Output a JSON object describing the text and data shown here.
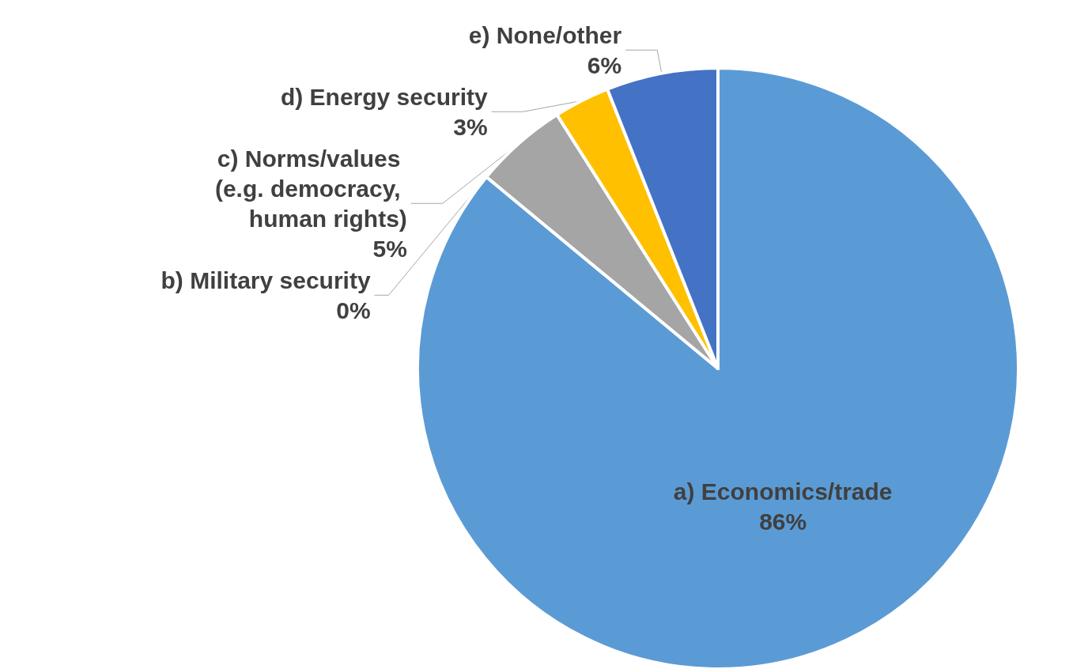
{
  "chart_data": {
    "type": "pie",
    "categories": [
      "a) Economics/trade",
      "b) Military security",
      "c) Norms/values (e.g. democracy, human rights)",
      "d) Energy security",
      "e) None/other"
    ],
    "values": [
      86,
      0,
      5,
      3,
      6
    ],
    "value_labels": [
      "86%",
      "0%",
      "5%",
      "3%",
      "6%"
    ],
    "colors": [
      "#5b9bd5",
      "#ed7d31",
      "#a5a5a5",
      "#ffc000",
      "#4472c4"
    ],
    "legend": false
  }
}
